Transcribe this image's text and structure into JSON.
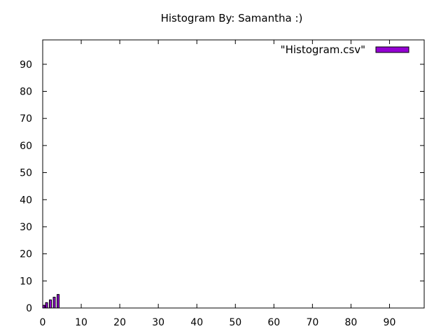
{
  "chart_data": {
    "type": "bar",
    "title": "Histogram By: Samantha :)",
    "xlabel": "",
    "ylabel": "",
    "xlim": [
      0,
      99
    ],
    "ylim": [
      0,
      99
    ],
    "x_ticks": [
      0,
      10,
      20,
      30,
      40,
      50,
      60,
      70,
      80,
      90
    ],
    "y_ticks": [
      0,
      10,
      20,
      30,
      40,
      50,
      60,
      70,
      80,
      90
    ],
    "grid": false,
    "legend_position": "top-right",
    "series": [
      {
        "name": "\"Histogram.csv\"",
        "color": "#9400d3",
        "x": [
          0,
          1,
          2,
          3,
          4
        ],
        "values": [
          1,
          2,
          3,
          4,
          5
        ]
      }
    ]
  }
}
